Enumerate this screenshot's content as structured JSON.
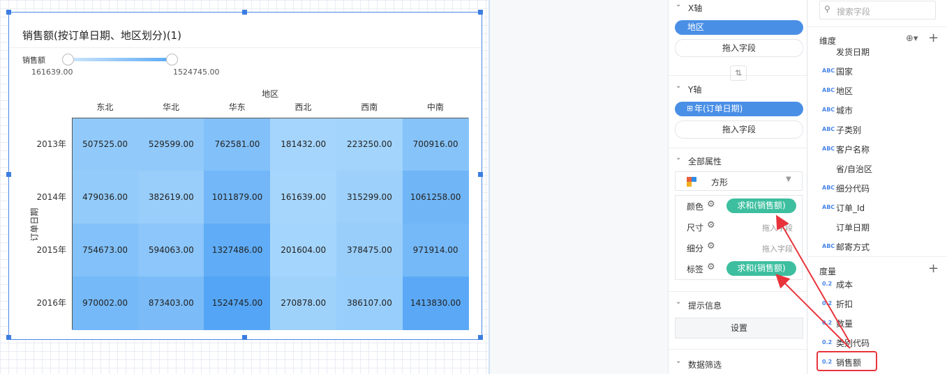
{
  "canvas": {
    "title": "销售额(按订单日期、地区划分)(1)",
    "slider": {
      "label": "销售额",
      "min": "161639.00",
      "max": "1524745.00"
    },
    "table": {
      "column_header": "地区",
      "row_header": "订单日期",
      "columns": [
        "东北",
        "华北",
        "华东",
        "西北",
        "西南",
        "中南"
      ],
      "rows": [
        {
          "label": "2013年",
          "cells": [
            "507525.00",
            "529599.00",
            "762581.00",
            "181432.00",
            "223250.00",
            "700916.00"
          ]
        },
        {
          "label": "2014年",
          "cells": [
            "479036.00",
            "382619.00",
            "1011879.00",
            "161639.00",
            "315299.00",
            "1061258.00"
          ]
        },
        {
          "label": "2015年",
          "cells": [
            "754673.00",
            "594063.00",
            "1327486.00",
            "201604.00",
            "378475.00",
            "971914.00"
          ]
        },
        {
          "label": "2016年",
          "cells": [
            "970002.00",
            "873403.00",
            "1524745.00",
            "270878.00",
            "386107.00",
            "1413830.00"
          ]
        }
      ]
    }
  },
  "shelf": {
    "x_axis": {
      "title": "X轴",
      "field": "地区",
      "drop": "拖入字段"
    },
    "y_axis": {
      "title": "Y轴",
      "field": "年(订单日期)",
      "drop": "拖入字段"
    },
    "properties": {
      "title": "全部属性",
      "shape": "方形",
      "rows": [
        {
          "label": "颜色",
          "value": "求和(销售额)"
        },
        {
          "label": "尺寸",
          "value": "拖入字段"
        },
        {
          "label": "细分",
          "value": "拖入字段"
        },
        {
          "label": "标签",
          "value": "求和(销售额)"
        }
      ]
    },
    "tooltip": {
      "title": "提示信息",
      "button": "设置"
    },
    "filter": {
      "title": "数据筛选"
    }
  },
  "fields": {
    "search": "搜索字段",
    "dimensions": {
      "title": "维度",
      "items": [
        {
          "type": "",
          "name": "发货日期"
        },
        {
          "type": "ABC",
          "name": "国家"
        },
        {
          "type": "ABC",
          "name": "地区"
        },
        {
          "type": "ABC",
          "name": "城市"
        },
        {
          "type": "ABC",
          "name": "子类别"
        },
        {
          "type": "ABC",
          "name": "客户名称"
        },
        {
          "type": "",
          "name": "省/自治区"
        },
        {
          "type": "ABC",
          "name": "细分代码"
        },
        {
          "type": "ABC",
          "name": "订单_Id"
        },
        {
          "type": "",
          "name": "订单日期"
        },
        {
          "type": "ABC",
          "name": "邮寄方式"
        }
      ]
    },
    "measures": {
      "title": "度量",
      "items": [
        {
          "type": "0.2",
          "name": "成本"
        },
        {
          "type": "0.2",
          "name": "折扣"
        },
        {
          "type": "0.2",
          "name": "数量"
        },
        {
          "type": "0.2",
          "name": "类别代码"
        },
        {
          "type": "0.2",
          "name": "销售额"
        }
      ]
    }
  }
}
